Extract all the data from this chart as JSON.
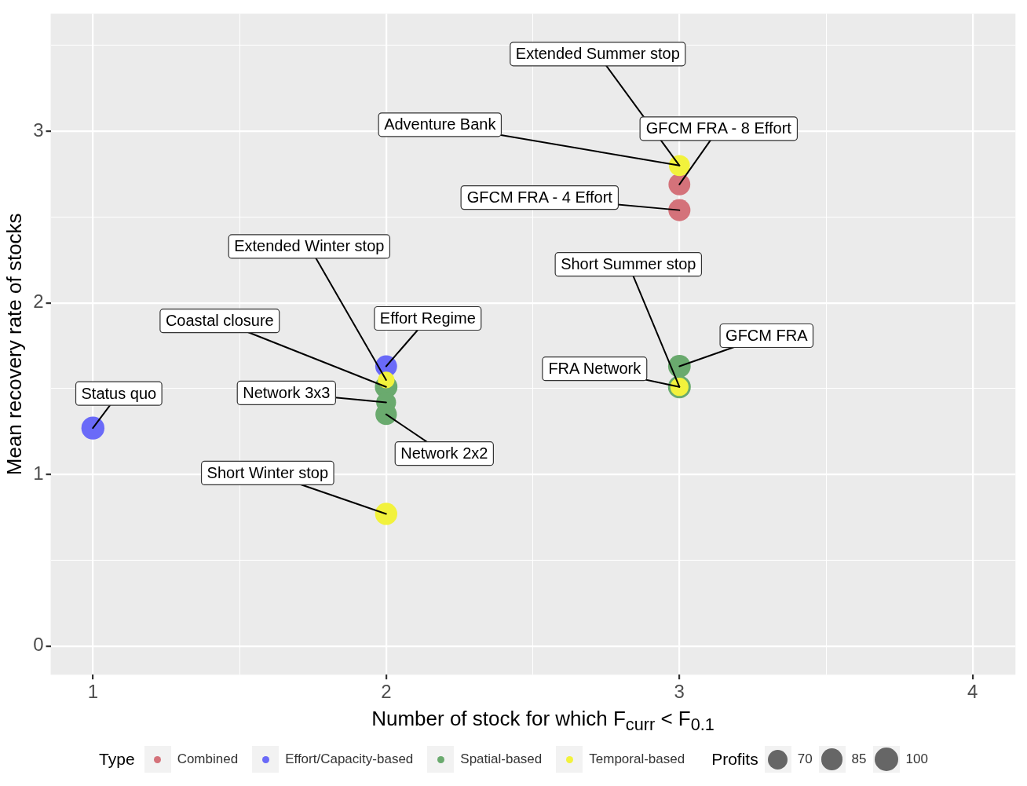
{
  "chart_data": {
    "type": "bubble",
    "xlabel": "Number of stock for which F$_{curr}$ < F$_{0.1}$",
    "ylabel": "Mean recovery rate of stocks",
    "legend_title": "Type",
    "legend": "bottom",
    "grid": true,
    "xlim": [
      0.856,
      4.146
    ],
    "ylim": [
      -0.167,
      3.685
    ],
    "xticks": [
      1,
      {
        "value": 1.5,
        "label": null
      },
      2,
      {
        "value": 2.5,
        "label": null
      },
      3,
      {
        "value": 3.5,
        "label": null
      },
      4
    ],
    "yticks": [
      0,
      {
        "value": 0.5,
        "label": null
      },
      1,
      {
        "value": 1.5,
        "label": null
      },
      2,
      {
        "value": 2.5,
        "label": null
      },
      3,
      {
        "value": 3.5,
        "label": null
      }
    ],
    "size_legend": [
      70,
      85,
      100
    ],
    "series": [
      {
        "name": "Combined",
        "color": "#d4727a",
        "x": [
          3,
          3
        ],
        "values": [
          2.69,
          2.54
        ],
        "sizes": [
          86,
          88
        ]
      },
      {
        "name": "Effort/Capacity-based",
        "color": "#6a6af8",
        "x": [
          1,
          2
        ],
        "values": [
          1.27,
          1.63
        ],
        "sizes": [
          96,
          86
        ]
      },
      {
        "name": "Spatial-based",
        "color": "#6aaa6e",
        "x": [
          2,
          2,
          2,
          3,
          3
        ],
        "values": [
          1.51,
          1.42,
          1.35,
          1.63,
          1.51
        ],
        "sizes": [
          92,
          71,
          83,
          92,
          94
        ]
      },
      {
        "name": "Temporal-based",
        "color": "#f2f23c",
        "x": [
          2,
          2,
          3,
          3
        ],
        "values": [
          1.55,
          0.77,
          2.8,
          1.51
        ],
        "sizes": [
          50,
          89,
          80,
          60
        ]
      }
    ],
    "annotations": [
      {
        "text": "Extended Summer stop",
        "x": 3,
        "y": 2.8
      },
      {
        "text": "Adventure Bank",
        "x": 3,
        "y": 2.8
      },
      {
        "text": "GFCM FRA - 8 Effort",
        "x": 3,
        "y": 2.69
      },
      {
        "text": "GFCM FRA - 4 Effort",
        "x": 3,
        "y": 2.54
      },
      {
        "text": "Extended Winter stop",
        "x": 2,
        "y": 1.55
      },
      {
        "text": "Short Summer stop",
        "x": 3,
        "y": 1.51
      },
      {
        "text": "Effort Regime",
        "x": 2,
        "y": 1.63
      },
      {
        "text": "Coastal closure",
        "x": 2,
        "y": 1.51
      },
      {
        "text": "GFCM FRA",
        "x": 3,
        "y": 1.63
      },
      {
        "text": "FRA Network",
        "x": 3,
        "y": 1.51
      },
      {
        "text": "Status quo",
        "x": 1,
        "y": 1.27
      },
      {
        "text": "Network 3x3",
        "x": 2,
        "y": 1.42
      },
      {
        "text": "Network 2x2",
        "x": 2,
        "y": 1.35
      },
      {
        "text": "Short Winter stop",
        "x": 2,
        "y": 0.77
      },
      "Profits"
    ]
  }
}
